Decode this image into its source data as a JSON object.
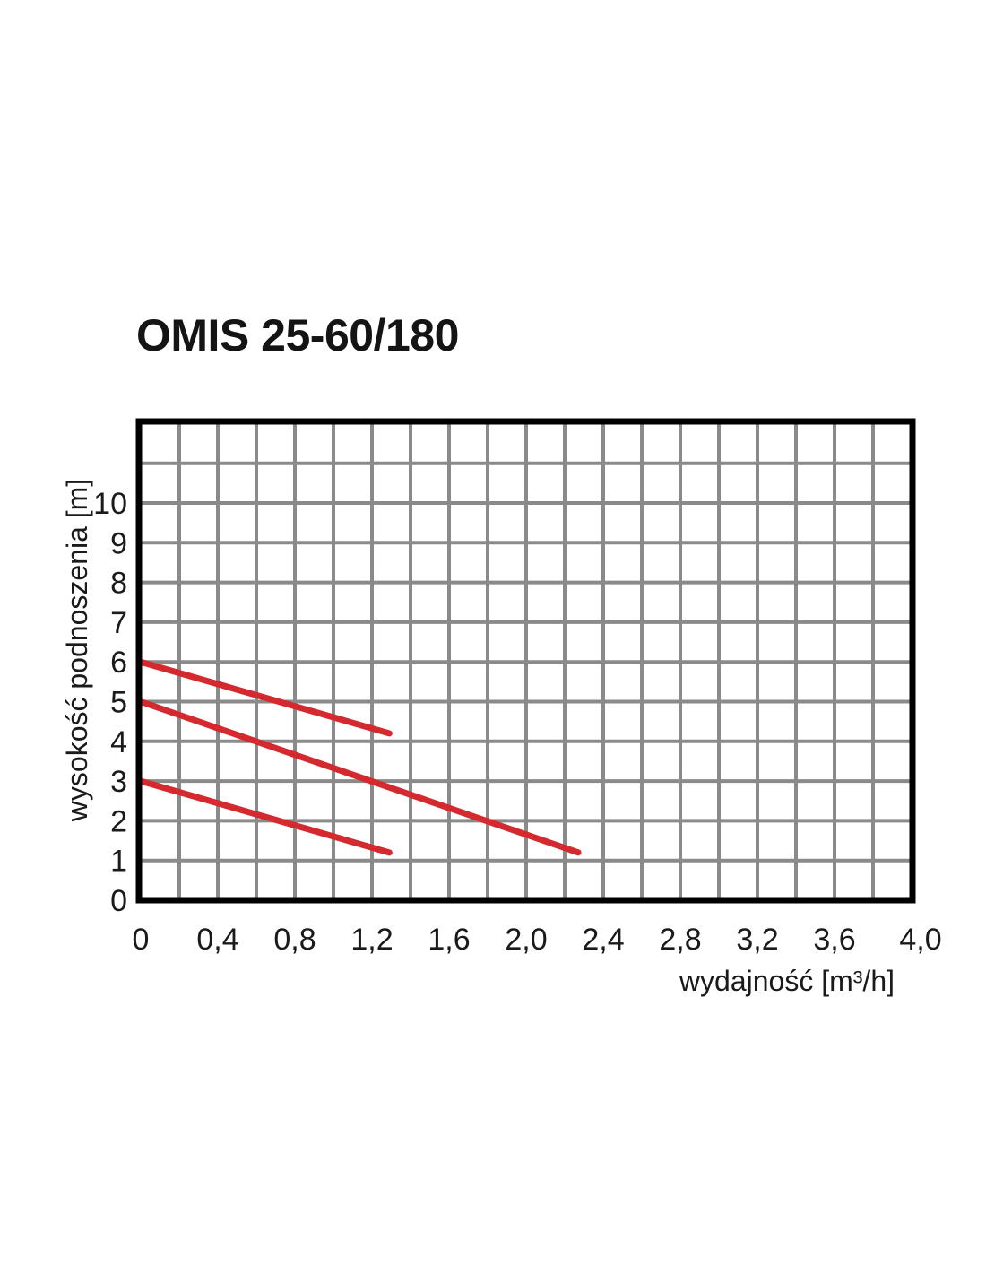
{
  "chart_data": {
    "type": "line",
    "title": "OMIS 25-60/180",
    "xlabel": "wydajność [m³/h]",
    "ylabel": "wysokość podnoszenia [m]",
    "xlim": [
      0,
      4.0
    ],
    "ylim": [
      0,
      11
    ],
    "grid": true,
    "x_ticks": [
      "0",
      "0,4",
      "0,8",
      "1,2",
      "1,6",
      "2,0",
      "2,4",
      "2,8",
      "3,2",
      "3,6",
      "4,0"
    ],
    "y_ticks": [
      "0",
      "1",
      "2",
      "3",
      "4",
      "5",
      "6",
      "7",
      "8",
      "9",
      "10"
    ],
    "series_color": "#d42a2f",
    "series": [
      {
        "x": [
          0,
          1.29
        ],
        "y": [
          6,
          4.2
        ],
        "dummy": false
      },
      {
        "x": [
          0,
          2.27
        ],
        "y": [
          5,
          1.2
        ]
      },
      {
        "x": [
          0,
          1.29
        ],
        "y": [
          3,
          1.2
        ]
      }
    ]
  }
}
